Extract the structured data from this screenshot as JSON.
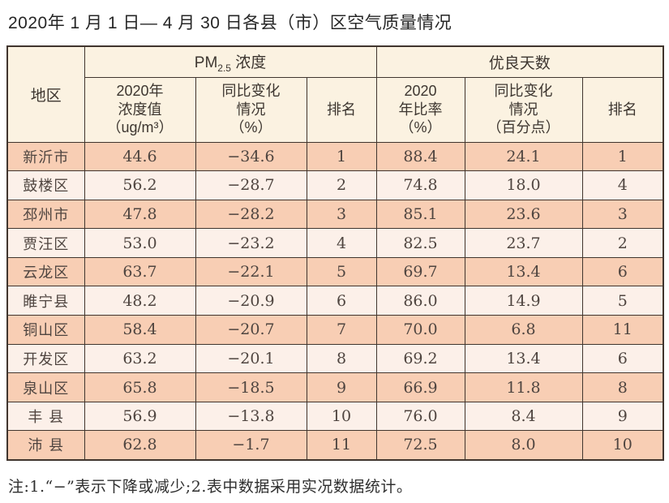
{
  "page": {
    "title": "2020年 1 月 1 日— 4 月 30 日各县（市）区空气质量情况",
    "footnote": "注:1.“−”表示下降或减少;2.表中数据采用实况数据统计。"
  },
  "table": {
    "header": {
      "region": "地区",
      "pm_prefix": "PM",
      "pm_sub": "2.5",
      "pm_suffix": " 浓度",
      "good_days": "优良天数",
      "pm_value": "2020年\n浓度值\n（ug/m³）",
      "pm_change": "同比变化\n情况\n（%）",
      "pm_rank": "排名",
      "good_rate": "2020\n年比率\n（%）",
      "good_change": "同比变化\n情况\n（百分点）",
      "good_rank": "排名"
    },
    "rows": [
      {
        "region": "新沂市",
        "pm_value": "44.6",
        "pm_change": "−34.6",
        "pm_rank": "1",
        "good_rate": "88.4",
        "good_change": "24.1",
        "good_rank": "1"
      },
      {
        "region": "鼓楼区",
        "pm_value": "56.2",
        "pm_change": "−28.7",
        "pm_rank": "2",
        "good_rate": "74.8",
        "good_change": "18.0",
        "good_rank": "4"
      },
      {
        "region": "邳州市",
        "pm_value": "47.8",
        "pm_change": "−28.2",
        "pm_rank": "3",
        "good_rate": "85.1",
        "good_change": "23.6",
        "good_rank": "3"
      },
      {
        "region": "贾汪区",
        "pm_value": "53.0",
        "pm_change": "−23.2",
        "pm_rank": "4",
        "good_rate": "82.5",
        "good_change": "23.7",
        "good_rank": "2"
      },
      {
        "region": "云龙区",
        "pm_value": "63.7",
        "pm_change": "−22.1",
        "pm_rank": "5",
        "good_rate": "69.7",
        "good_change": "13.4",
        "good_rank": "6"
      },
      {
        "region": "睢宁县",
        "pm_value": "48.2",
        "pm_change": "−20.9",
        "pm_rank": "6",
        "good_rate": "86.0",
        "good_change": "14.9",
        "good_rank": "5"
      },
      {
        "region": "铜山区",
        "pm_value": "58.4",
        "pm_change": "−20.7",
        "pm_rank": "7",
        "good_rate": "70.0",
        "good_change": "6.8",
        "good_rank": "11"
      },
      {
        "region": "开发区",
        "pm_value": "63.2",
        "pm_change": "−20.1",
        "pm_rank": "8",
        "good_rate": "69.2",
        "good_change": "13.4",
        "good_rank": "6"
      },
      {
        "region": "泉山区",
        "pm_value": "65.8",
        "pm_change": "−18.5",
        "pm_rank": "9",
        "good_rate": "66.9",
        "good_change": "11.8",
        "good_rank": "8"
      },
      {
        "region": "丰 县",
        "pm_value": "56.9",
        "pm_change": "−13.8",
        "pm_rank": "10",
        "good_rate": "76.0",
        "good_change": "8.4",
        "good_rank": "9"
      },
      {
        "region": "沛 县",
        "pm_value": "62.8",
        "pm_change": "−1.7",
        "pm_rank": "11",
        "good_rate": "72.5",
        "good_change": "8.0",
        "good_rank": "10"
      }
    ],
    "colors": {
      "row_odd_bg": "#f8ceb4",
      "row_even_bg": "#fcf0e9",
      "header_bg": "#fbf2e1",
      "border": "#40352e",
      "text": "#4f4540"
    }
  }
}
